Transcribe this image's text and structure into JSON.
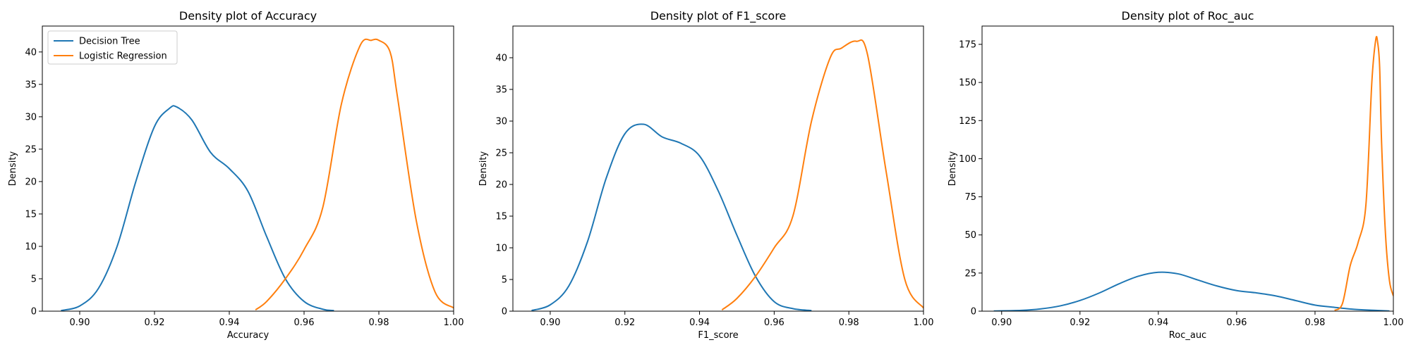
{
  "colors": {
    "decision_tree": "#1f77b4",
    "logistic_regression": "#ff7f0e"
  },
  "chart_data": [
    {
      "type": "line",
      "title": "Density plot of Accuracy",
      "xlabel": "Accuracy",
      "ylabel": "Density",
      "xlim": [
        0.89,
        1.0
      ],
      "ylim": [
        0,
        44
      ],
      "xticks": [
        0.9,
        0.92,
        0.94,
        0.96,
        0.98,
        1.0
      ],
      "xtick_labels": [
        "0.90",
        "0.92",
        "0.94",
        "0.96",
        "0.98",
        "1.00"
      ],
      "yticks": [
        0,
        5,
        10,
        15,
        20,
        25,
        30,
        35,
        40
      ],
      "ytick_labels": [
        "0",
        "5",
        "10",
        "15",
        "20",
        "25",
        "30",
        "35",
        "40"
      ],
      "legend": {
        "position": "upper-left",
        "entries": [
          "Decision Tree",
          "Logistic Regression"
        ]
      },
      "series": [
        {
          "name": "Decision Tree",
          "color": "#1f77b4",
          "x": [
            0.895,
            0.9,
            0.905,
            0.91,
            0.915,
            0.92,
            0.924,
            0.926,
            0.93,
            0.935,
            0.94,
            0.945,
            0.95,
            0.955,
            0.96,
            0.965,
            0.968
          ],
          "y": [
            0.1,
            0.8,
            3.5,
            10.0,
            20.0,
            28.5,
            31.3,
            31.5,
            29.5,
            24.5,
            22.0,
            18.5,
            11.5,
            5.0,
            1.5,
            0.3,
            0.1
          ]
        },
        {
          "name": "Logistic Regression",
          "color": "#ff7f0e",
          "x": [
            0.947,
            0.95,
            0.955,
            0.96,
            0.965,
            0.97,
            0.975,
            0.978,
            0.98,
            0.983,
            0.985,
            0.99,
            0.995,
            1.0
          ],
          "y": [
            0.2,
            1.5,
            5.0,
            9.5,
            16.0,
            32.0,
            41.0,
            41.8,
            41.8,
            40.0,
            33.0,
            14.0,
            3.0,
            0.5
          ]
        }
      ]
    },
    {
      "type": "line",
      "title": "Density plot of F1_score",
      "xlabel": "F1_score",
      "ylabel": "Density",
      "xlim": [
        0.89,
        1.0
      ],
      "ylim": [
        0,
        45
      ],
      "xticks": [
        0.9,
        0.92,
        0.94,
        0.96,
        0.98,
        1.0
      ],
      "xtick_labels": [
        "0.90",
        "0.92",
        "0.94",
        "0.96",
        "0.98",
        "1.00"
      ],
      "yticks": [
        0,
        5,
        10,
        15,
        20,
        25,
        30,
        35,
        40
      ],
      "ytick_labels": [
        "0",
        "5",
        "10",
        "15",
        "20",
        "25",
        "30",
        "35",
        "40"
      ],
      "series": [
        {
          "name": "Decision Tree",
          "color": "#1f77b4",
          "x": [
            0.895,
            0.9,
            0.905,
            0.91,
            0.915,
            0.92,
            0.925,
            0.93,
            0.935,
            0.94,
            0.945,
            0.95,
            0.955,
            0.96,
            0.965,
            0.97
          ],
          "y": [
            0.1,
            1.0,
            4.0,
            11.0,
            21.0,
            28.0,
            29.5,
            27.5,
            26.5,
            24.5,
            19.0,
            12.0,
            5.5,
            1.5,
            0.4,
            0.1
          ]
        },
        {
          "name": "Logistic Regression",
          "color": "#ff7f0e",
          "x": [
            0.946,
            0.95,
            0.955,
            0.96,
            0.965,
            0.97,
            0.975,
            0.978,
            0.982,
            0.985,
            0.99,
            0.995,
            1.0
          ],
          "y": [
            0.2,
            2.0,
            5.5,
            10.0,
            15.0,
            30.0,
            40.0,
            41.5,
            42.6,
            40.5,
            22.0,
            5.0,
            0.5
          ]
        }
      ]
    },
    {
      "type": "line",
      "title": "Density plot of Roc_auc",
      "xlabel": "Roc_auc",
      "ylabel": "Density",
      "xlim": [
        0.895,
        1.0
      ],
      "ylim": [
        0,
        187
      ],
      "xticks": [
        0.9,
        0.92,
        0.94,
        0.96,
        0.98,
        1.0
      ],
      "xtick_labels": [
        "0.90",
        "0.92",
        "0.94",
        "0.96",
        "0.98",
        "1.00"
      ],
      "yticks": [
        0,
        25,
        50,
        75,
        100,
        125,
        150,
        175
      ],
      "ytick_labels": [
        "0",
        "25",
        "50",
        "75",
        "100",
        "125",
        "150",
        "175"
      ],
      "series": [
        {
          "name": "Decision Tree",
          "color": "#1f77b4",
          "x": [
            0.898,
            0.905,
            0.91,
            0.915,
            0.92,
            0.925,
            0.93,
            0.935,
            0.94,
            0.945,
            0.95,
            0.955,
            0.96,
            0.965,
            0.97,
            0.975,
            0.98,
            0.985,
            0.99,
            0.995,
            0.999
          ],
          "y": [
            0.1,
            0.5,
            1.5,
            3.5,
            7.0,
            12.0,
            18.0,
            23.0,
            25.5,
            24.5,
            20.5,
            16.5,
            13.5,
            12.0,
            10.0,
            7.0,
            4.0,
            2.5,
            1.2,
            0.6,
            0.1
          ]
        },
        {
          "name": "Logistic Regression",
          "color": "#ff7f0e",
          "x": [
            0.985,
            0.987,
            0.989,
            0.991,
            0.993,
            0.9945,
            0.9955,
            0.996,
            0.9965,
            0.997,
            0.998,
            0.999,
            1.0
          ],
          "y": [
            0.5,
            5.0,
            30.0,
            45.0,
            70.0,
            150.0,
            178.0,
            176.0,
            160.0,
            110.0,
            50.0,
            20.0,
            10.0
          ]
        }
      ]
    }
  ]
}
